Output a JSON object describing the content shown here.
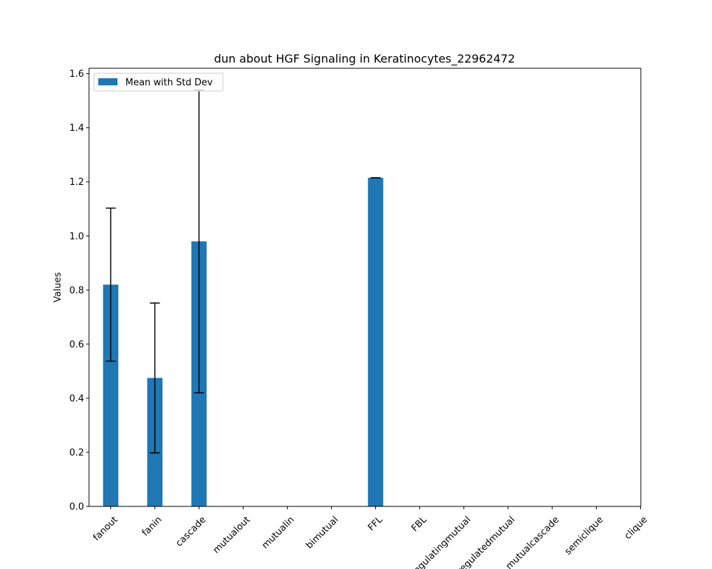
{
  "chart_data": {
    "type": "bar",
    "title": "dun about HGF Signaling in Keratinocytes_22962472",
    "xlabel": "",
    "ylabel": "Values",
    "ylim": [
      0,
      1.62
    ],
    "yticks": [
      0.0,
      0.2,
      0.4,
      0.6,
      0.8,
      1.0,
      1.2,
      1.4,
      1.6
    ],
    "ytick_labels": [
      "0.0",
      "0.2",
      "0.4",
      "0.6",
      "0.8",
      "1.0",
      "1.2",
      "1.4",
      "1.6"
    ],
    "categories": [
      "fanout",
      "fanin",
      "cascade",
      "mutualout",
      "mutualin",
      "bimutual",
      "FFL",
      "FBL",
      "regulatingmutual",
      "regulatedmutual",
      "mutualcascade",
      "semiclique",
      "clique"
    ],
    "series": [
      {
        "name": "Mean with Std Dev",
        "color": "#1f77b4",
        "values": [
          0.82,
          0.475,
          0.98,
          0,
          0,
          0,
          1.215,
          0,
          0,
          0,
          0,
          0,
          0
        ],
        "errors": [
          0.283,
          0.277,
          0.56,
          0,
          0,
          0,
          0,
          0,
          0,
          0,
          0,
          0,
          0
        ]
      }
    ],
    "legend_position": "top-left",
    "grid": false
  }
}
